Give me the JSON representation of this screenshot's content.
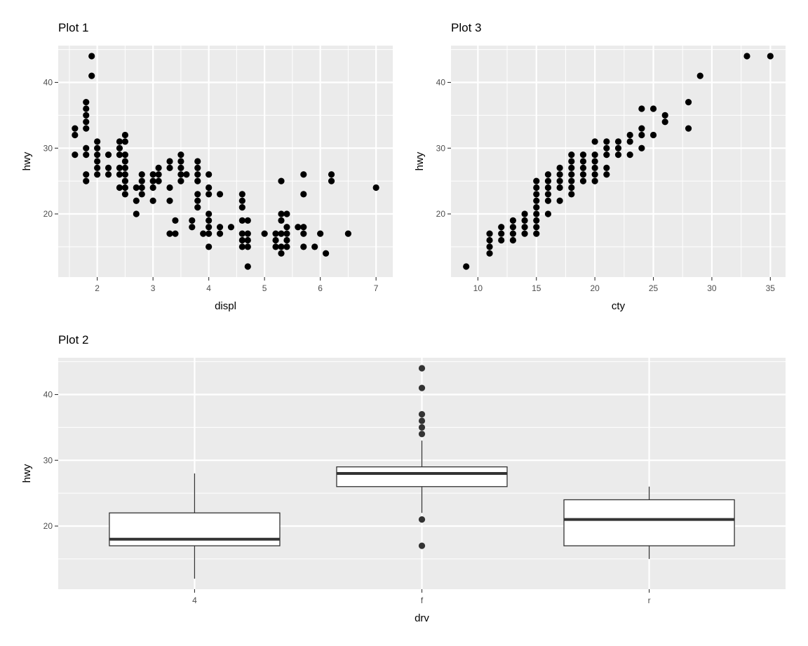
{
  "chart_data": [
    {
      "type": "scatter",
      "title": "Plot 1",
      "xlabel": "displ",
      "ylabel": "hwy",
      "xlim": [
        1.3,
        7.3
      ],
      "ylim": [
        10.4,
        45.6
      ],
      "xticks": [
        2,
        3,
        4,
        5,
        6,
        7
      ],
      "xminor": [
        1.5,
        2.5,
        3.5,
        4.5,
        5.5,
        6.5
      ],
      "yticks": [
        20,
        30,
        40
      ],
      "yminor": [
        15,
        25,
        35,
        45
      ],
      "grid": true,
      "points": [
        [
          1.6,
          33
        ],
        [
          1.6,
          32
        ],
        [
          1.6,
          29
        ],
        [
          1.8,
          37
        ],
        [
          1.8,
          36
        ],
        [
          1.8,
          35
        ],
        [
          1.8,
          34
        ],
        [
          1.8,
          33
        ],
        [
          1.8,
          30
        ],
        [
          1.8,
          29
        ],
        [
          1.8,
          26
        ],
        [
          1.8,
          25
        ],
        [
          1.9,
          44
        ],
        [
          1.9,
          41
        ],
        [
          2.0,
          31
        ],
        [
          2.0,
          30
        ],
        [
          2.0,
          29
        ],
        [
          2.0,
          28
        ],
        [
          2.0,
          27
        ],
        [
          2.0,
          26
        ],
        [
          2.2,
          29
        ],
        [
          2.2,
          27
        ],
        [
          2.2,
          26
        ],
        [
          2.4,
          31
        ],
        [
          2.4,
          30
        ],
        [
          2.4,
          29
        ],
        [
          2.4,
          27
        ],
        [
          2.4,
          26
        ],
        [
          2.4,
          24
        ],
        [
          2.5,
          32
        ],
        [
          2.5,
          31
        ],
        [
          2.5,
          29
        ],
        [
          2.5,
          28
        ],
        [
          2.5,
          27
        ],
        [
          2.5,
          26
        ],
        [
          2.5,
          25
        ],
        [
          2.5,
          24
        ],
        [
          2.5,
          23
        ],
        [
          2.7,
          24
        ],
        [
          2.7,
          22
        ],
        [
          2.7,
          20
        ],
        [
          2.8,
          26
        ],
        [
          2.8,
          25
        ],
        [
          2.8,
          24
        ],
        [
          2.8,
          23
        ],
        [
          3.0,
          26
        ],
        [
          3.0,
          25
        ],
        [
          3.0,
          24
        ],
        [
          3.0,
          22
        ],
        [
          3.1,
          27
        ],
        [
          3.1,
          26
        ],
        [
          3.1,
          25
        ],
        [
          3.3,
          28
        ],
        [
          3.3,
          27
        ],
        [
          3.3,
          24
        ],
        [
          3.3,
          22
        ],
        [
          3.3,
          17
        ],
        [
          3.4,
          19
        ],
        [
          3.4,
          17
        ],
        [
          3.5,
          29
        ],
        [
          3.5,
          28
        ],
        [
          3.5,
          27
        ],
        [
          3.5,
          26
        ],
        [
          3.5,
          25
        ],
        [
          3.6,
          26
        ],
        [
          3.7,
          19
        ],
        [
          3.7,
          18
        ],
        [
          3.8,
          28
        ],
        [
          3.8,
          27
        ],
        [
          3.8,
          26
        ],
        [
          3.8,
          25
        ],
        [
          3.8,
          23
        ],
        [
          3.8,
          22
        ],
        [
          3.8,
          21
        ],
        [
          3.9,
          17
        ],
        [
          4.0,
          26
        ],
        [
          4.0,
          24
        ],
        [
          4.0,
          23
        ],
        [
          4.0,
          20
        ],
        [
          4.0,
          19
        ],
        [
          4.0,
          18
        ],
        [
          4.0,
          17
        ],
        [
          4.0,
          15
        ],
        [
          4.2,
          23
        ],
        [
          4.2,
          18
        ],
        [
          4.2,
          17
        ],
        [
          4.4,
          18
        ],
        [
          4.6,
          23
        ],
        [
          4.6,
          22
        ],
        [
          4.6,
          21
        ],
        [
          4.6,
          19
        ],
        [
          4.6,
          17
        ],
        [
          4.6,
          16
        ],
        [
          4.6,
          15
        ],
        [
          4.7,
          19
        ],
        [
          4.7,
          17
        ],
        [
          4.7,
          16
        ],
        [
          4.7,
          15
        ],
        [
          4.7,
          12
        ],
        [
          5.0,
          17
        ],
        [
          5.2,
          17
        ],
        [
          5.2,
          16
        ],
        [
          5.2,
          15
        ],
        [
          5.3,
          25
        ],
        [
          5.3,
          20
        ],
        [
          5.3,
          19
        ],
        [
          5.3,
          17
        ],
        [
          5.3,
          15
        ],
        [
          5.3,
          14
        ],
        [
          5.4,
          20
        ],
        [
          5.4,
          18
        ],
        [
          5.4,
          17
        ],
        [
          5.4,
          16
        ],
        [
          5.4,
          15
        ],
        [
          5.6,
          18
        ],
        [
          5.7,
          26
        ],
        [
          5.7,
          23
        ],
        [
          5.7,
          18
        ],
        [
          5.7,
          17
        ],
        [
          5.7,
          15
        ],
        [
          5.9,
          15
        ],
        [
          6.0,
          17
        ],
        [
          6.1,
          14
        ],
        [
          6.2,
          26
        ],
        [
          6.2,
          25
        ],
        [
          6.5,
          17
        ],
        [
          7.0,
          24
        ]
      ]
    },
    {
      "type": "scatter",
      "title": "Plot 3",
      "xlabel": "cty",
      "ylabel": "hwy",
      "xlim": [
        7.7,
        36.3
      ],
      "ylim": [
        10.4,
        45.6
      ],
      "xticks": [
        10,
        15,
        20,
        25,
        30,
        35
      ],
      "xminor": [
        12.5,
        17.5,
        22.5,
        27.5,
        32.5
      ],
      "yticks": [
        20,
        30,
        40
      ],
      "yminor": [
        15,
        25,
        35,
        45
      ],
      "grid": true,
      "points": [
        [
          9,
          12
        ],
        [
          11,
          17
        ],
        [
          11,
          16
        ],
        [
          11,
          15
        ],
        [
          11,
          14
        ],
        [
          12,
          18
        ],
        [
          12,
          17
        ],
        [
          12,
          16
        ],
        [
          13,
          19
        ],
        [
          13,
          18
        ],
        [
          13,
          17
        ],
        [
          13,
          16
        ],
        [
          14,
          20
        ],
        [
          14,
          19
        ],
        [
          14,
          18
        ],
        [
          14,
          17
        ],
        [
          15,
          25
        ],
        [
          15,
          24
        ],
        [
          15,
          23
        ],
        [
          15,
          22
        ],
        [
          15,
          21
        ],
        [
          15,
          20
        ],
        [
          15,
          19
        ],
        [
          15,
          18
        ],
        [
          15,
          17
        ],
        [
          16,
          26
        ],
        [
          16,
          25
        ],
        [
          16,
          24
        ],
        [
          16,
          23
        ],
        [
          16,
          22
        ],
        [
          16,
          20
        ],
        [
          17,
          27
        ],
        [
          17,
          26
        ],
        [
          17,
          25
        ],
        [
          17,
          24
        ],
        [
          17,
          22
        ],
        [
          18,
          29
        ],
        [
          18,
          28
        ],
        [
          18,
          27
        ],
        [
          18,
          26
        ],
        [
          18,
          25
        ],
        [
          18,
          24
        ],
        [
          18,
          23
        ],
        [
          19,
          29
        ],
        [
          19,
          28
        ],
        [
          19,
          27
        ],
        [
          19,
          26
        ],
        [
          19,
          25
        ],
        [
          20,
          31
        ],
        [
          20,
          29
        ],
        [
          20,
          28
        ],
        [
          20,
          27
        ],
        [
          20,
          26
        ],
        [
          20,
          25
        ],
        [
          21,
          31
        ],
        [
          21,
          30
        ],
        [
          21,
          29
        ],
        [
          21,
          27
        ],
        [
          21,
          26
        ],
        [
          22,
          31
        ],
        [
          22,
          30
        ],
        [
          22,
          29
        ],
        [
          23,
          32
        ],
        [
          23,
          31
        ],
        [
          23,
          29
        ],
        [
          24,
          36
        ],
        [
          24,
          33
        ],
        [
          24,
          32
        ],
        [
          24,
          30
        ],
        [
          25,
          36
        ],
        [
          25,
          32
        ],
        [
          26,
          35
        ],
        [
          26,
          34
        ],
        [
          28,
          37
        ],
        [
          28,
          33
        ],
        [
          29,
          41
        ],
        [
          33,
          44
        ],
        [
          35,
          44
        ]
      ]
    },
    {
      "type": "boxplot",
      "title": "Plot 2",
      "xlabel": "drv",
      "ylabel": "hwy",
      "categories": [
        "4",
        "f",
        "r"
      ],
      "ylim": [
        10.4,
        45.6
      ],
      "yticks": [
        20,
        30,
        40
      ],
      "yminor": [
        15,
        25,
        35,
        45
      ],
      "grid": true,
      "boxes": [
        {
          "category": "4",
          "min": 12,
          "q1": 17,
          "median": 18,
          "q3": 22,
          "max": 28,
          "outliers": []
        },
        {
          "category": "f",
          "min": 22,
          "q1": 26,
          "median": 28,
          "q3": 29,
          "max": 33,
          "outliers": [
            44,
            41,
            37,
            36,
            35,
            34,
            21,
            17
          ]
        },
        {
          "category": "r",
          "min": 15,
          "q1": 17,
          "median": 21,
          "q3": 24,
          "max": 26,
          "outliers": []
        }
      ]
    }
  ]
}
